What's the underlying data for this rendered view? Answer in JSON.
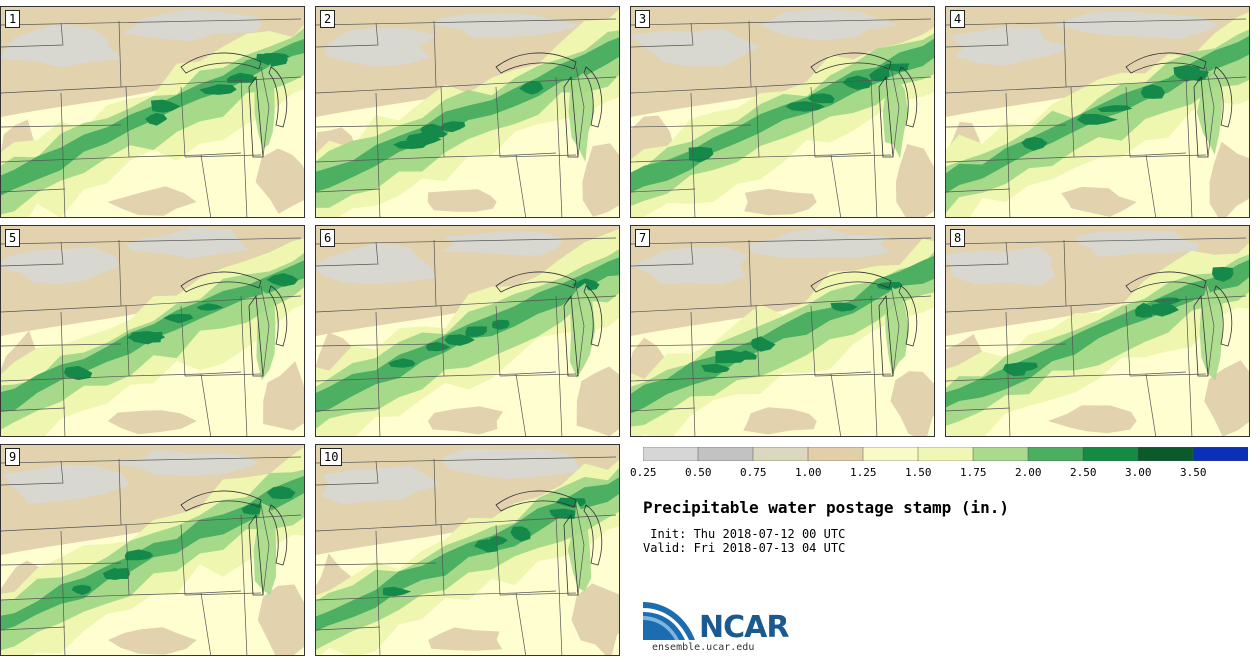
{
  "panels": [
    {
      "label": "1"
    },
    {
      "label": "2"
    },
    {
      "label": "3"
    },
    {
      "label": "4"
    },
    {
      "label": "5"
    },
    {
      "label": "6"
    },
    {
      "label": "7"
    },
    {
      "label": "8"
    },
    {
      "label": "9"
    },
    {
      "label": "10"
    }
  ],
  "colorbar": {
    "ticks": [
      "0.25",
      "0.50",
      "0.75",
      "1.00",
      "1.25",
      "1.50",
      "1.75",
      "2.00",
      "2.50",
      "3.00",
      "3.50"
    ],
    "colors": [
      "#d6d6d6",
      "#c2c2c2",
      "#dcd8c0",
      "#e2cfa8",
      "#fafac6",
      "#f0f7b4",
      "#a8dc8c",
      "#4caf60",
      "#158a43",
      "#0b5a2c",
      "#0a2fb8"
    ]
  },
  "title": "Precipitable water postage stamp (in.)",
  "init": " Init: Thu 2018-07-12 00 UTC",
  "valid": "Valid: Fri 2018-07-13 04 UTC",
  "logo": {
    "name": "NCAR",
    "url": "ensemble.ucar.edu"
  },
  "field_colors": {
    "gray": "#d8d8d0",
    "tan": "#e2d2ae",
    "cream": "#fefed0",
    "lime": "#eef6b0",
    "light_green": "#a6da8a",
    "green": "#4caf62",
    "dark_green": "#15894a"
  }
}
